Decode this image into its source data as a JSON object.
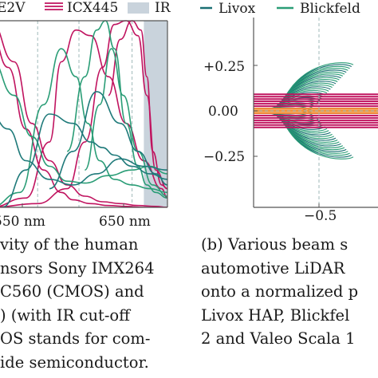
{
  "colors": {
    "sony": "#1f7a7a",
    "e2v": "#c4c4c4",
    "icx": "#c0135f",
    "ir": "#c9d3dc",
    "green": "#2a9d76",
    "teal": "#1a6e73",
    "orange": "#f0923a",
    "axis": "#555555",
    "dashed": "#9fb8b8"
  },
  "chart_data": [
    {
      "type": "line",
      "title": "",
      "xlabel": "",
      "ylabel": "",
      "x_tick_labels": [
        "550 nm",
        "650 nm"
      ],
      "xlim": [
        400,
        700
      ],
      "ylim": [
        0,
        1
      ],
      "grid": false,
      "legend_placement": "top",
      "legend": [
        {
          "name": "E2V",
          "visible_text": "E2V",
          "style": "dashed-lines"
        },
        {
          "name": "ICX445",
          "visible_text": "ICX445",
          "style": "lines"
        },
        {
          "name": "IR",
          "visible_text": "IR",
          "style": "shaded-region"
        }
      ],
      "ir_region": [
        660,
        700
      ],
      "series": [
        {
          "name": "",
          "color_key": "icx",
          "x": [
            400,
            440,
            470,
            500,
            530,
            560,
            590,
            620,
            650,
            680,
            700
          ],
          "y": [
            1.0,
            0.78,
            0.45,
            0.25,
            0.12,
            0.06,
            0.03,
            0.02,
            0.01,
            0.005,
            0.0
          ]
        },
        {
          "name": "",
          "color_key": "icx",
          "x": [
            400,
            430,
            460,
            490,
            520,
            540,
            570,
            600,
            630,
            660,
            700
          ],
          "y": [
            0.95,
            0.75,
            0.42,
            0.2,
            0.08,
            0.04,
            0.02,
            0.01,
            0.005,
            0.0,
            0.0
          ]
        },
        {
          "name": "",
          "color_key": "icx",
          "x": [
            400,
            460,
            500,
            520,
            545,
            570,
            600,
            630,
            660,
            690,
            700
          ],
          "y": [
            0.0,
            0.05,
            0.35,
            0.78,
            0.95,
            0.92,
            0.7,
            0.45,
            0.25,
            0.1,
            0.05
          ]
        },
        {
          "name": "",
          "color_key": "icx",
          "x": [
            400,
            480,
            530,
            560,
            590,
            610,
            630,
            650,
            665,
            680,
            700
          ],
          "y": [
            0.0,
            0.02,
            0.1,
            0.35,
            0.75,
            0.98,
            1.0,
            0.92,
            0.6,
            0.2,
            0.1
          ]
        },
        {
          "name": "",
          "color_key": "icx",
          "x": [
            600,
            620,
            640,
            655,
            665,
            675,
            690,
            700
          ],
          "y": [
            0.6,
            0.9,
            1.0,
            0.95,
            0.7,
            0.3,
            0.12,
            0.1
          ]
        },
        {
          "name": "",
          "color_key": "green",
          "x": [
            400,
            440,
            470,
            500,
            530,
            560,
            600,
            640,
            670,
            700
          ],
          "y": [
            0.8,
            0.6,
            0.38,
            0.22,
            0.14,
            0.13,
            0.17,
            0.2,
            0.22,
            0.18
          ]
        },
        {
          "name": "",
          "color_key": "green",
          "x": [
            400,
            450,
            490,
            520,
            545,
            565,
            585,
            610,
            640,
            670,
            700
          ],
          "y": [
            0.0,
            0.08,
            0.55,
            0.85,
            0.7,
            0.45,
            0.25,
            0.15,
            0.12,
            0.1,
            0.08
          ]
        },
        {
          "name": "",
          "color_key": "green",
          "x": [
            530,
            560,
            580,
            595,
            610,
            630,
            650,
            665,
            680,
            700
          ],
          "y": [
            0.3,
            0.7,
            0.95,
            1.0,
            0.85,
            0.45,
            0.22,
            0.12,
            0.08,
            0.05
          ]
        },
        {
          "name": "",
          "color_key": "green",
          "x": [
            560,
            585,
            605,
            625,
            650,
            675,
            700
          ],
          "y": [
            0.2,
            0.55,
            0.85,
            0.6,
            0.3,
            0.12,
            0.06
          ]
        },
        {
          "name": "",
          "color_key": "sony",
          "x": [
            400,
            430,
            460,
            500,
            540,
            580,
            620,
            660,
            700
          ],
          "y": [
            0.5,
            0.42,
            0.25,
            0.15,
            0.12,
            0.18,
            0.26,
            0.22,
            0.2
          ]
        },
        {
          "name": "",
          "color_key": "sony",
          "x": [
            420,
            460,
            500,
            540,
            570,
            590,
            610,
            640,
            670,
            700
          ],
          "y": [
            0.0,
            0.2,
            0.5,
            0.45,
            0.35,
            0.32,
            0.28,
            0.22,
            0.18,
            0.15
          ]
        },
        {
          "name": "",
          "color_key": "sony",
          "x": [
            500,
            540,
            580,
            620,
            650,
            680,
            700
          ],
          "y": [
            0.1,
            0.3,
            0.62,
            0.45,
            0.3,
            0.18,
            0.12
          ]
        }
      ],
      "dashed_verticals": [
        480,
        550,
        640
      ]
    },
    {
      "type": "line",
      "title": "",
      "xlabel": "",
      "ylabel": "",
      "y_tick_labels": [
        "+0.25",
        "0.00",
        "−0.25"
      ],
      "x_tick_labels": [
        "−0.5"
      ],
      "ylim": [
        -0.45,
        0.45
      ],
      "xlim": [
        -0.75,
        -0.25
      ],
      "grid": false,
      "legend_placement": "top",
      "legend": [
        {
          "name": "Livox",
          "visible_text": "Livox",
          "color_key": "teal"
        },
        {
          "name": "Blickfeld",
          "visible_text": "Blickfeld",
          "color_key": "green"
        }
      ],
      "dashed_reference": {
        "y": 0.0,
        "x": -0.5
      }
    }
  ],
  "caption_left": {
    "lines": [
      "vity of the human",
      "nsors Sony IMX264",
      "C560 (CMOS) and",
      ") (with IR cut-off",
      "OS stands for com-",
      "ide semiconductor."
    ]
  },
  "caption_right": {
    "lines": [
      "(b) Various beam s",
      "automotive LiDAR",
      "onto a normalized p",
      "Livox HAP, Blickfel",
      "2 and Valeo Scala 1"
    ]
  }
}
